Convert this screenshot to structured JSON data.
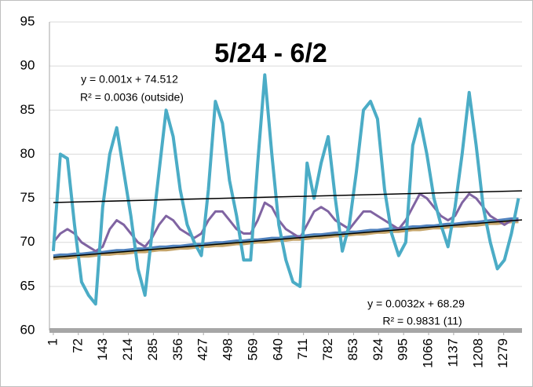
{
  "chart_data": {
    "type": "line",
    "title": "5/24 - 6/2",
    "x": [
      1,
      21,
      41,
      61,
      81,
      101,
      121,
      141,
      161,
      181,
      201,
      221,
      241,
      261,
      281,
      301,
      321,
      341,
      361,
      381,
      401,
      421,
      441,
      461,
      481,
      501,
      521,
      541,
      561,
      581,
      601,
      621,
      641,
      661,
      681,
      701,
      721,
      741,
      761,
      781,
      801,
      821,
      841,
      861,
      881,
      901,
      921,
      941,
      961,
      981,
      1001,
      1021,
      1041,
      1061,
      1081,
      1101,
      1121,
      1141,
      1161,
      1181,
      1201,
      1221,
      1241,
      1261,
      1281,
      1301,
      1321
    ],
    "series": [
      {
        "color": "#9bbb59",
        "values": [
          68.3,
          68.4,
          68.4,
          68.5,
          68.6,
          68.6,
          68.7,
          68.7,
          68.8,
          68.9,
          68.9,
          69.0,
          69.1,
          69.1,
          69.2,
          69.3,
          69.3,
          69.4,
          69.5,
          69.5,
          69.6,
          69.6,
          69.7,
          69.8,
          69.8,
          69.9,
          70.0,
          70.0,
          70.1,
          70.2,
          70.2,
          70.3,
          70.3,
          70.4,
          70.5,
          70.5,
          70.6,
          70.7,
          70.7,
          70.8,
          70.9,
          70.9,
          71.0,
          71.1,
          71.1,
          71.2,
          71.2,
          71.3,
          71.4,
          71.4,
          71.5,
          71.6,
          71.6,
          71.7,
          71.8,
          71.8,
          71.9,
          71.9,
          72.0,
          72.1,
          72.1,
          72.2,
          72.3,
          72.3,
          72.4,
          72.5,
          72.5
        ]
      },
      {
        "color": "#4f81bd",
        "values": [
          68.5,
          68.6,
          68.6,
          68.7,
          68.7,
          68.8,
          68.9,
          68.9,
          69.0,
          69.1,
          69.1,
          69.2,
          69.3,
          69.3,
          69.4,
          69.5,
          69.5,
          69.6,
          69.6,
          69.7,
          69.8,
          69.8,
          69.9,
          70.0,
          70.0,
          70.1,
          70.2,
          70.2,
          70.3,
          70.3,
          70.4,
          70.5,
          70.5,
          70.6,
          70.7,
          70.7,
          70.8,
          70.9,
          70.9,
          71.0,
          71.1,
          71.1,
          71.2,
          71.2,
          71.3,
          71.4,
          71.4,
          71.5,
          71.6,
          71.6,
          71.7,
          71.8,
          71.8,
          71.9,
          71.9,
          72.0,
          72.1,
          72.1,
          72.2,
          72.3,
          72.3,
          72.4,
          72.5,
          72.5,
          72.6,
          72.7,
          72.7
        ]
      },
      {
        "color": "#c4a46a",
        "values": [
          68.1,
          68.2,
          68.2,
          68.3,
          68.4,
          68.4,
          68.5,
          68.6,
          68.6,
          68.7,
          68.7,
          68.8,
          68.9,
          68.9,
          69.0,
          69.1,
          69.1,
          69.2,
          69.3,
          69.3,
          69.4,
          69.5,
          69.5,
          69.6,
          69.6,
          69.7,
          69.8,
          69.8,
          69.9,
          70.0,
          70.0,
          70.1,
          70.2,
          70.2,
          70.3,
          70.3,
          70.4,
          70.5,
          70.5,
          70.6,
          70.7,
          70.7,
          70.8,
          70.9,
          70.9,
          71.0,
          71.1,
          71.1,
          71.2,
          71.2,
          71.3,
          71.4,
          71.4,
          71.5,
          71.6,
          71.6,
          71.7,
          71.8,
          71.8,
          71.9,
          71.9,
          72.0,
          72.1,
          72.1,
          72.2,
          72.3,
          72.3
        ]
      },
      {
        "color": "#8064a2",
        "values": [
          70,
          71,
          71.5,
          71,
          70,
          69.5,
          69,
          69.5,
          71.5,
          72.5,
          72,
          71,
          70,
          69.5,
          70.5,
          72,
          73,
          72.5,
          71.5,
          71,
          70.5,
          71,
          72.5,
          73.5,
          73.5,
          72.5,
          71.5,
          71,
          71,
          72.5,
          74.5,
          74,
          72.5,
          71.5,
          71,
          70.5,
          72,
          73.5,
          74,
          73.5,
          72.5,
          72,
          71.5,
          72.5,
          73.5,
          73.5,
          73,
          72.5,
          72,
          71.5,
          72.5,
          74,
          75.5,
          75,
          74,
          73,
          72.5,
          73,
          74.5,
          75.5,
          75,
          74,
          73,
          72.5,
          72,
          72.5,
          72.5
        ]
      },
      {
        "color": "#4bacc6",
        "values": [
          69,
          80,
          79.5,
          72,
          65.5,
          64,
          63,
          74,
          80,
          83,
          78,
          73,
          67,
          64,
          71,
          78,
          85,
          82,
          76,
          72,
          70,
          68.5,
          76,
          86,
          83.5,
          77,
          73,
          68,
          68,
          79,
          89,
          80,
          72,
          68,
          65.5,
          65,
          79,
          75,
          79,
          82,
          75,
          69,
          72,
          78,
          85,
          86,
          84,
          76,
          71,
          68.5,
          70,
          81,
          84,
          80,
          75,
          72,
          69.5,
          74,
          80,
          87,
          81,
          74,
          70,
          67,
          68,
          71,
          75
        ]
      }
    ],
    "trendlines": [
      {
        "slope": 0.001,
        "intercept": 74.512,
        "equation": "y = 0.001x + 74.512",
        "r2": "R² = 0.0036 (outside)"
      },
      {
        "slope": 0.0032,
        "intercept": 68.29,
        "equation": "y = 0.0032x + 68.29",
        "r2": "R² = 0.9831 (11)"
      }
    ],
    "xlim": [
      -10,
      1331
    ],
    "xticks": [
      1,
      72,
      143,
      214,
      285,
      356,
      427,
      498,
      569,
      640,
      711,
      782,
      853,
      924,
      995,
      1066,
      1137,
      1208,
      1279
    ],
    "ylim": [
      60,
      95
    ],
    "yticks": [
      60,
      65,
      70,
      75,
      80,
      85,
      90,
      95
    ],
    "grid": true
  }
}
